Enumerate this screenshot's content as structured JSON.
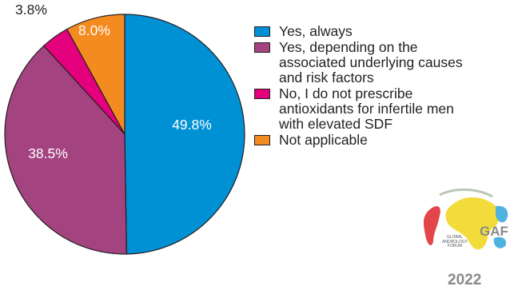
{
  "chart_data": {
    "type": "pie",
    "slices": [
      {
        "label": "Yes, always",
        "value": 49.8,
        "value_label": "49.8%",
        "color": "#0091d5",
        "text_color": "#ffffff"
      },
      {
        "label": "Yes, depending on the associated underlying causes and risk factors",
        "value": 38.5,
        "value_label": "38.5%",
        "color": "#a3437f",
        "text_color": "#ffffff"
      },
      {
        "label": "No, I do not prescribe antioxidants for infertile men with elevated SDF",
        "value": 3.8,
        "value_label": "3.8%",
        "color": "#e4007c",
        "text_color": "#231f20"
      },
      {
        "label": "Not applicable",
        "value": 8.0,
        "value_label": "8.0%",
        "color": "#f38b20",
        "text_color": "#ffffff"
      }
    ],
    "legend_position": "right"
  },
  "legend": {
    "items": [
      {
        "lines": [
          "Yes, always"
        ],
        "color": "#0091d5"
      },
      {
        "lines": [
          "Yes, depending on the",
          "associated underlying causes",
          "and risk factors"
        ],
        "color": "#a3437f"
      },
      {
        "lines": [
          "No, I do not prescribe",
          "antioxidants for infertile men",
          "with elevated SDF"
        ],
        "color": "#e4007c"
      },
      {
        "lines": [
          "Not applicable"
        ],
        "color": "#f38b20"
      }
    ]
  },
  "logo": {
    "text_lines": [
      "GLOBAL",
      "ANDROLOGY",
      "FORUM"
    ],
    "mark": "GAF",
    "year": "2022"
  }
}
